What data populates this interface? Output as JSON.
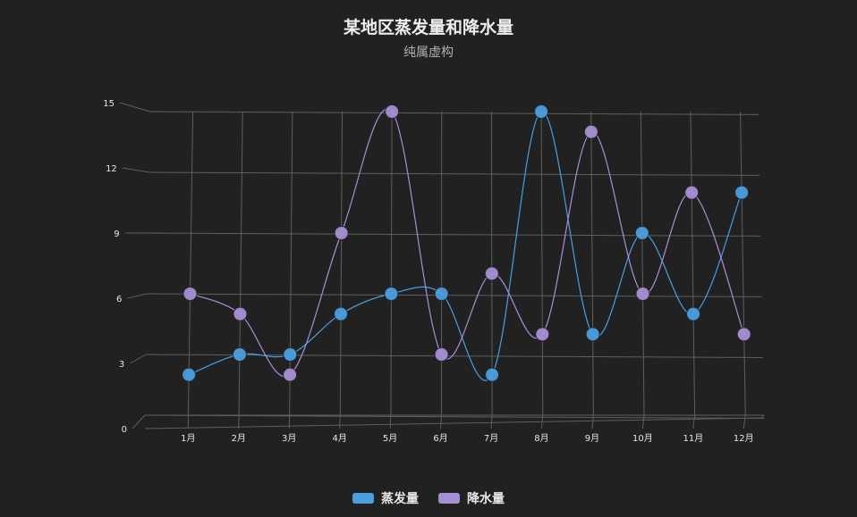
{
  "chart_data": {
    "type": "line",
    "title": "某地区蒸发量和降水量",
    "subtitle": "纯属虚构",
    "categories": [
      "1月",
      "2月",
      "3月",
      "4月",
      "5月",
      "6月",
      "7月",
      "8月",
      "9月",
      "10月",
      "11月",
      "12月"
    ],
    "y_ticks": [
      "0",
      "3",
      "6",
      "9",
      "12",
      "15"
    ],
    "ylim": [
      0,
      15
    ],
    "grid": true,
    "legend_position": "bottom",
    "series": [
      {
        "name": "蒸发量",
        "color": "#4a9fe0",
        "values": [
          2,
          3,
          3,
          5,
          6,
          6,
          2,
          15,
          4,
          9,
          5,
          11
        ]
      },
      {
        "name": "降水量",
        "color": "#a78fd6",
        "values": [
          6,
          5,
          2,
          9,
          15,
          3,
          7,
          4,
          14,
          6,
          11,
          4
        ]
      }
    ]
  }
}
